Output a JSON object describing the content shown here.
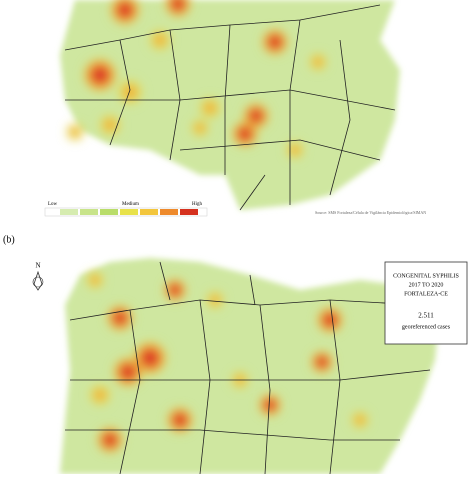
{
  "panel_label": "(b)",
  "north_label": "N",
  "legend": {
    "low": "Low",
    "medium": "Medium",
    "high": "High"
  },
  "source": "Source: SMS Fortaleza/Célula de Vigilância Epidemiológica/SIMAN",
  "info_box": {
    "title_lines": [
      "CONGENITAL SYPHILIS",
      "2017 TO 2020",
      "FORTALEZA-CE"
    ],
    "count": "2.511",
    "count_label": "georeferenced cases"
  }
}
